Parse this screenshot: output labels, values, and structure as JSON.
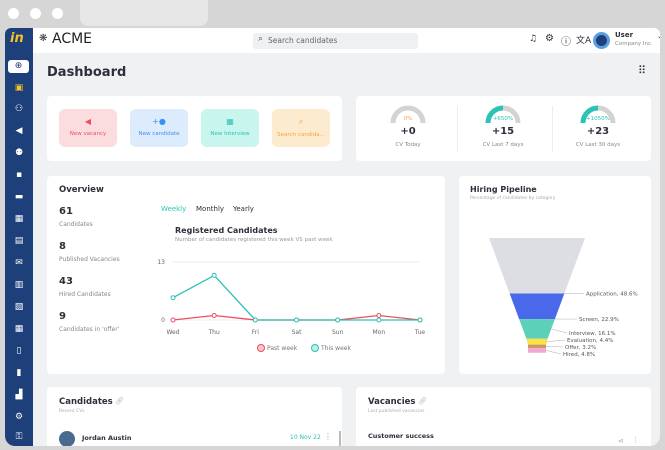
{
  "app": {
    "brand": "ACME",
    "logo_text": "in"
  },
  "header": {
    "search_placeholder": "Search candidates",
    "user_name": "User",
    "user_company": "Company Inc."
  },
  "page": {
    "title": "Dashboard"
  },
  "quick_actions": [
    {
      "label": "New vacancy",
      "icon": "megaphone-icon",
      "bg": "#fbdde0",
      "fg": "#ef4d5c"
    },
    {
      "label": "New candidate",
      "icon": "add-user-icon",
      "bg": "#dcecfd",
      "fg": "#3f8ef5"
    },
    {
      "label": "New Interview",
      "icon": "calendar-icon",
      "bg": "#c9f5ef",
      "fg": "#2bc3b3"
    },
    {
      "label": "Search candida...",
      "icon": "search-icon",
      "bg": "#fdebd0",
      "fg": "#f6a43c"
    }
  ],
  "cv_stats": [
    {
      "pct": "0%",
      "value": "+0",
      "label": "CV Today",
      "fill": 0
    },
    {
      "pct": "+650%",
      "value": "+15",
      "label": "CV Last 7 days",
      "fill": 0.5
    },
    {
      "pct": "+1050%",
      "value": "+23",
      "label": "CV Last 30 days",
      "fill": 0.5
    }
  ],
  "overview": {
    "title": "Overview",
    "stats": [
      {
        "value": "61",
        "label": "Candidates"
      },
      {
        "value": "8",
        "label": "Published Vacancies"
      },
      {
        "value": "43",
        "label": "Hired Candidates"
      },
      {
        "value": "9",
        "label": "Candidates in 'offer'"
      }
    ],
    "tabs": [
      "Weekly",
      "Monthly",
      "Yearly"
    ]
  },
  "chart_data": [
    {
      "type": "line",
      "title": "Registered Candidates",
      "subtitle": "Number of candidates registered this week VS past week",
      "categories": [
        "Wed",
        "Thu",
        "Fri",
        "Sat",
        "Sun",
        "Mon",
        "Tue"
      ],
      "ylim": [
        0,
        13
      ],
      "yticks": [
        "0",
        "13"
      ],
      "series": [
        {
          "name": "Past week",
          "color": "#ef4d5c",
          "values": [
            0,
            1,
            0,
            0,
            0,
            1,
            0
          ]
        },
        {
          "name": "This week",
          "color": "#2bc3b3",
          "values": [
            5,
            10,
            0,
            0,
            0,
            0,
            0
          ]
        }
      ]
    },
    {
      "type": "funnel",
      "title": "Hiring Pipeline",
      "subtitle": "Percentage of candidates by category",
      "categories": [
        "Application",
        "Screen",
        "Interview",
        "Evaluation",
        "Offer",
        "Hired"
      ],
      "values": [
        48.6,
        22.9,
        16.1,
        4.4,
        3.2,
        4.8
      ],
      "labels": [
        "Application, 48.6%",
        "Screen, 22.9%",
        "Interview, 16.1%",
        "Evaluation, 4.4%",
        "Offer, 3.2%",
        "Hired, 4.8%"
      ],
      "colors": [
        "#dcdee3",
        "#4a68ea",
        "#5dd0b8",
        "#fde047",
        "#c99a5e",
        "#f3a8d4"
      ]
    }
  ],
  "candidates": {
    "title": "Candidates",
    "subtitle": "Recent CVs",
    "rows": [
      {
        "name": "Jordan Austin",
        "date": "10 Nov 22"
      }
    ]
  },
  "vacancies": {
    "title": "Vacancies",
    "subtitle": "Last published vacancies",
    "rows": [
      {
        "name": "Customer success"
      }
    ]
  }
}
